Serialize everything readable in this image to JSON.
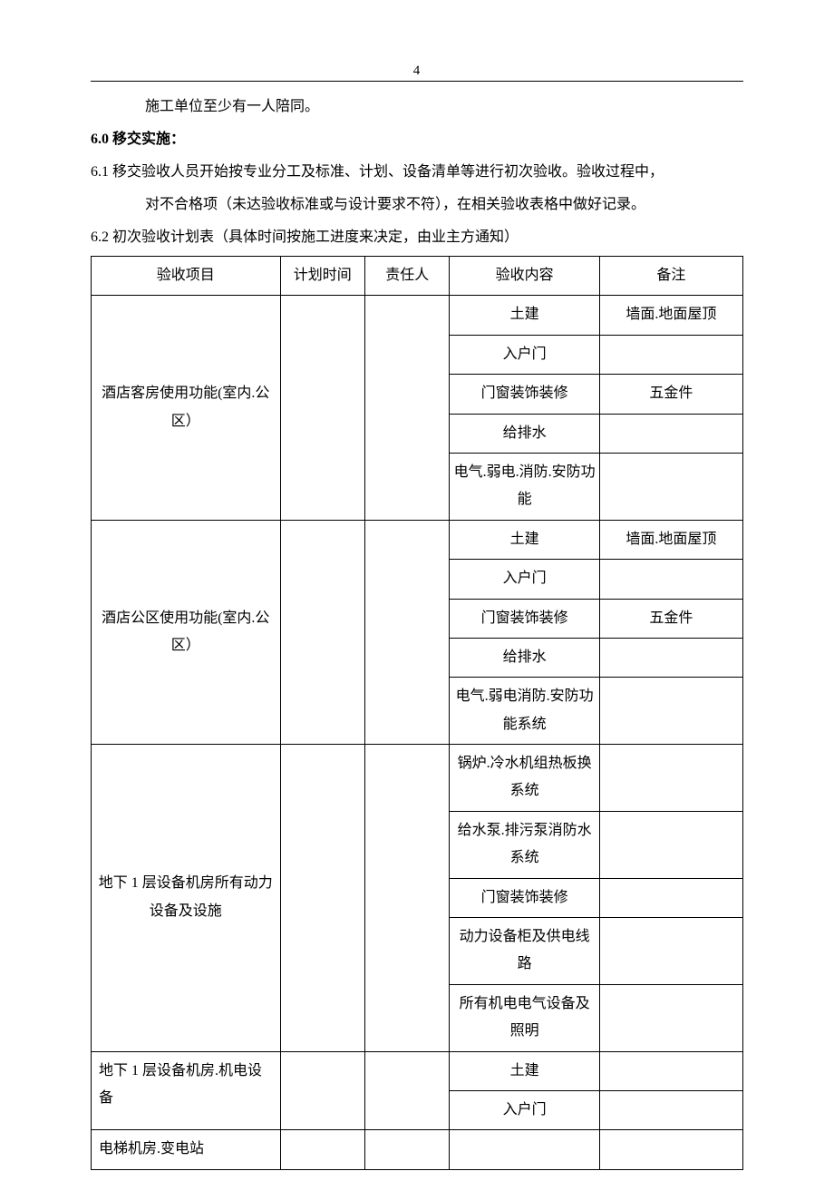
{
  "page_number": "4",
  "text": {
    "line_indent": "施工单位至少有一人陪同。",
    "heading_60": "6.0 移交实施：",
    "line_61a": "6.1 移交验收人员开始按专业分工及标准、计划、设备清单等进行初次验收。验收过程中，",
    "line_61b": "对不合格项（未达验收标准或与设计要求不符），在相关验收表格中做好记录。",
    "line_62": "6.2 初次验收计划表（具体时间按施工进度来决定，由业主方通知）"
  },
  "table": {
    "headers": {
      "item": "验收项目",
      "plan": "计划时间",
      "resp": "责任人",
      "content": "验收内容",
      "note": "备注"
    },
    "groups": [
      {
        "item": "酒店客房使用功能(室内.公区）",
        "item_align": "center",
        "rows": [
          {
            "content": "土建",
            "note": "墙面.地面屋顶"
          },
          {
            "content": "入户门",
            "note": ""
          },
          {
            "content": "门窗装饰装修",
            "note": "五金件"
          },
          {
            "content": "给排水",
            "note": ""
          },
          {
            "content": "电气.弱电.消防.安防功能",
            "note": ""
          }
        ]
      },
      {
        "item": "酒店公区使用功能(室内.公区）",
        "item_align": "center",
        "rows": [
          {
            "content": "土建",
            "note": "墙面.地面屋顶"
          },
          {
            "content": "入户门",
            "note": ""
          },
          {
            "content": "门窗装饰装修",
            "note": "五金件"
          },
          {
            "content": "给排水",
            "note": ""
          },
          {
            "content": "电气.弱电消防.安防功能系统",
            "note": ""
          }
        ]
      },
      {
        "item": "地下 1 层设备机房所有动力设备及设施",
        "item_align": "center",
        "rows": [
          {
            "content": "锅炉.冷水机组热板换系统",
            "note": ""
          },
          {
            "content": "给水泵.排污泵消防水系统",
            "note": ""
          },
          {
            "content": "门窗装饰装修",
            "note": ""
          },
          {
            "content": "动力设备柜及供电线路",
            "note": ""
          },
          {
            "content": "所有机电电气设备及照明",
            "note": ""
          }
        ]
      },
      {
        "item": "地下 1 层设备机房.机电设备",
        "item_align": "left",
        "rows": [
          {
            "content": "土建",
            "note": ""
          },
          {
            "content": "入户门",
            "note": ""
          }
        ]
      },
      {
        "item": "电梯机房.变电站",
        "item_align": "left",
        "rows": [
          {
            "content": "",
            "note": ""
          }
        ]
      }
    ]
  },
  "style": {
    "text_color": "#000000",
    "bg_color": "#ffffff",
    "border_color": "#000000",
    "font_family": "SimSun",
    "body_fontsize": 16,
    "line_height": 2.0
  }
}
